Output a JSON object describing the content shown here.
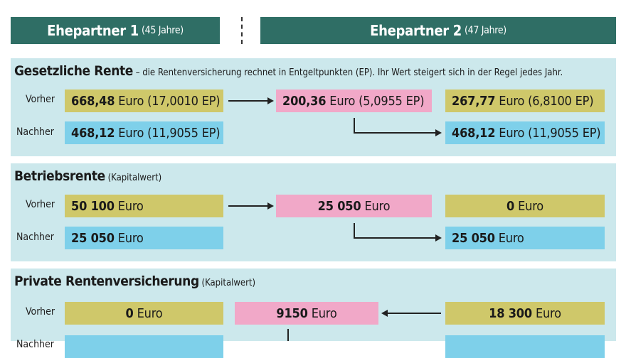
{
  "header": {
    "p1_name": "Ehepartner 1",
    "p1_age": "(45 Jahre)",
    "p2_name": "Ehepartner 2",
    "p2_age": "(47 Jahre)"
  },
  "labels": {
    "vorher": "Vorher",
    "nachher": "Nachher"
  },
  "gesetzlich": {
    "title": "Gesetzliche Rente",
    "subtitle": " – die Rentenversicherung rechnet in Entgeltpunkten (EP). Ihr Wert steigert sich in der Regel jedes Jahr.",
    "p1_vorher_num": "668,48",
    "p1_vorher_rest": "Euro (17,0010 EP)",
    "transfer_num": "200,36",
    "transfer_rest": "Euro (5,0955 EP)",
    "p2_vorher_num": "267,77",
    "p2_vorher_rest": "Euro (6,8100 EP)",
    "p1_nachher_num": "468,12",
    "p1_nachher_rest": "Euro (11,9055 EP)",
    "p2_nachher_num": "468,12",
    "p2_nachher_rest": "Euro (11,9055 EP)"
  },
  "betrieb": {
    "title": "Betriebsrente",
    "subtitle": " (Kapitalwert)",
    "p1_vorher_num": "50 100",
    "p1_vorher_rest": "Euro",
    "transfer_num": "25 050",
    "transfer_rest": "Euro",
    "p2_vorher_num": "0",
    "p2_vorher_rest": "Euro",
    "p1_nachher_num": "25 050",
    "p1_nachher_rest": "Euro",
    "p2_nachher_num": "25 050",
    "p2_nachher_rest": "Euro"
  },
  "privat": {
    "title": "Private Rentenversicherung",
    "subtitle": " (Kapitalwert)",
    "p1_vorher_num": "0",
    "p1_vorher_rest": "Euro",
    "transfer_num": "9150",
    "transfer_rest": "Euro",
    "p2_vorher_num": "18 300",
    "p2_vorher_rest": "Euro"
  },
  "colors": {
    "header": "#2f6e65",
    "panel": "#cce8ec",
    "vorher": "#cfc86a",
    "nachher": "#7ed0ea",
    "transfer": "#f1a8c8"
  }
}
